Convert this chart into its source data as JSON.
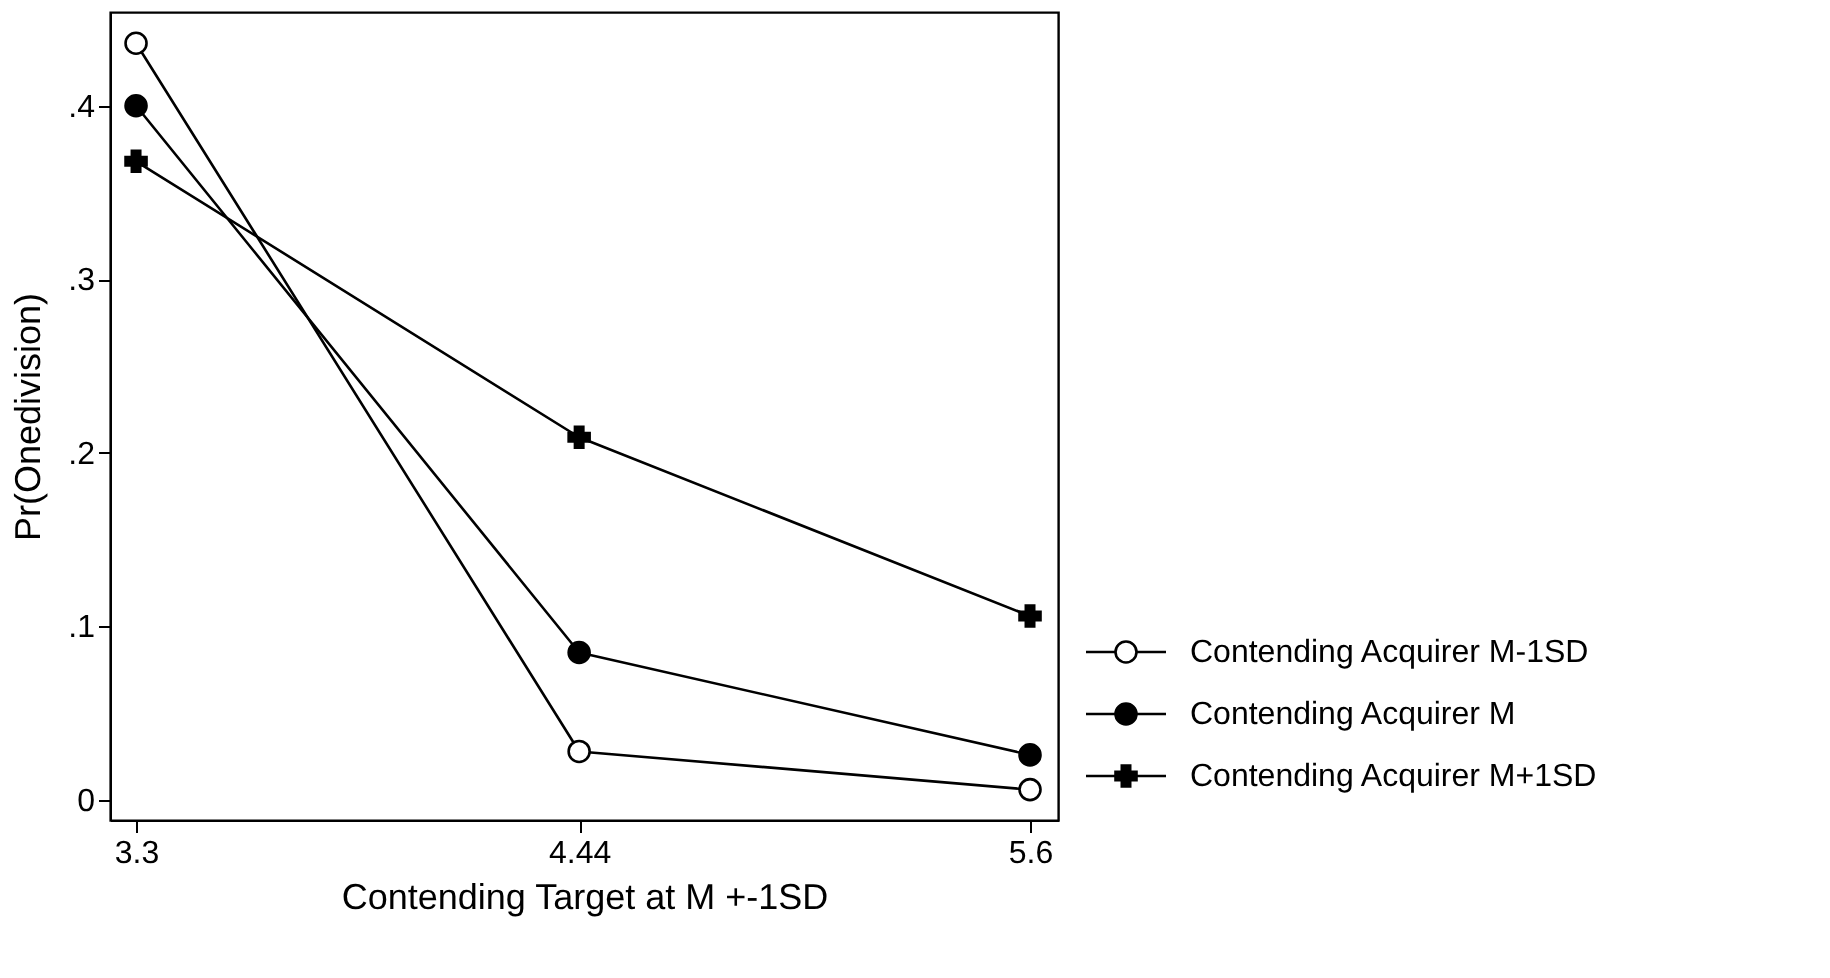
{
  "chart_data": {
    "type": "line",
    "xlabel": "Contending Target at M +-1SD",
    "ylabel": "Pr(Onedivision)",
    "x": [
      3.3,
      4.44,
      5.6
    ],
    "xlim": [
      3.233,
      5.672
    ],
    "xticks": [
      {
        "value": 3.3,
        "label": "3.3"
      },
      {
        "value": 4.44,
        "label": "4.44"
      },
      {
        "value": 5.6,
        "label": "5.6"
      }
    ],
    "ylim": [
      -0.0115,
      0.454
    ],
    "yticks": [
      {
        "value": 0,
        "label": "0"
      },
      {
        "value": 0.1,
        "label": ".1"
      },
      {
        "value": 0.2,
        "label": ".2"
      },
      {
        "value": 0.3,
        "label": ".3"
      },
      {
        "value": 0.4,
        "label": ".4"
      }
    ],
    "grid": false,
    "legend": "right",
    "line_style": "solid",
    "series": [
      {
        "name": "Contending Acquirer M-1SD",
        "color": "#000000",
        "marker": "open circle",
        "values": [
          0.436,
          0.028,
          0.006
        ]
      },
      {
        "name": "Contending Acquirer M",
        "color": "#000000",
        "marker": "circle",
        "values": [
          0.4,
          0.085,
          0.026
        ]
      },
      {
        "name": "Contending Acquirer M+1SD",
        "color": "#000000",
        "marker": "cross",
        "values": [
          0.368,
          0.209,
          0.106
        ]
      }
    ]
  }
}
